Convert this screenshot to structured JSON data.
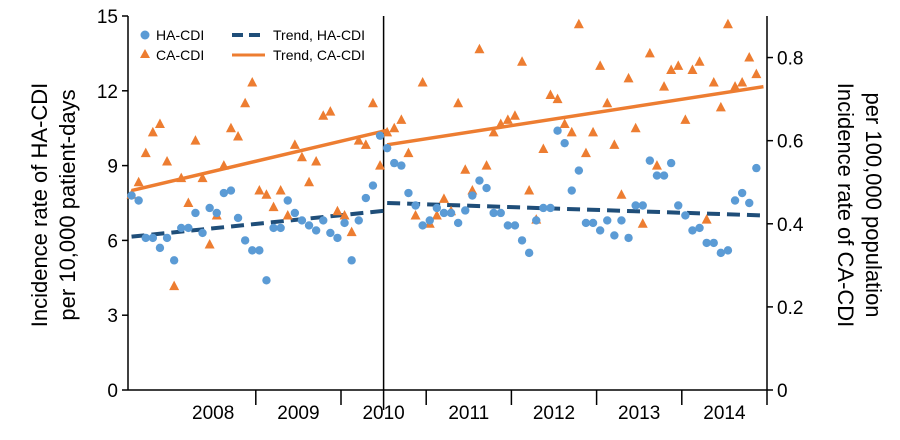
{
  "chart_data": {
    "type": "scatter",
    "x_categories": [
      "2008",
      "2009",
      "2010",
      "2011",
      "2012",
      "2013",
      "2014"
    ],
    "left_axis": {
      "label_line1": "Incidence rate of HA-CDI",
      "label_line2": "per 10,000 patient-days",
      "ylim": [
        0,
        15
      ],
      "ticks": [
        "0",
        "3",
        "6",
        "9",
        "12",
        "15"
      ]
    },
    "right_axis": {
      "label_line1": "Incidence rate of CA-CDI",
      "label_line2": "per 100,000 population",
      "ylim": [
        0,
        0.9
      ],
      "ticks": [
        "0",
        "0.2",
        "0.4",
        "0.6",
        "0.8"
      ]
    },
    "intervention_month": 36,
    "legend": {
      "ha": "HA-CDI",
      "ca": "CA-CDI",
      "trend_ha": "Trend, HA-CDI",
      "trend_ca": "Trend, CA-CDI"
    },
    "colors": {
      "ha": "#5b9bd5",
      "ca": "#ed7d31",
      "trend_ha": "#1f4e79",
      "trend_ca": "#ed7d31"
    },
    "ha_cdi": [
      7.8,
      7.6,
      6.1,
      6.1,
      5.7,
      6.1,
      5.2,
      6.5,
      6.5,
      7.1,
      6.3,
      7.3,
      7.1,
      7.9,
      8.0,
      6.9,
      6.0,
      5.6,
      5.6,
      4.4,
      6.5,
      6.5,
      7.6,
      7.1,
      6.8,
      6.6,
      6.4,
      6.8,
      6.3,
      6.1,
      6.7,
      5.2,
      6.8,
      7.7,
      8.2,
      10.2,
      9.7,
      9.1,
      9.0,
      7.9,
      7.4,
      6.6,
      6.8,
      7.3,
      7.1,
      7.1,
      6.7,
      7.2,
      7.8,
      8.4,
      8.1,
      7.1,
      7.1,
      6.6,
      6.6,
      6.0,
      5.5,
      6.8,
      7.3,
      7.3,
      10.4,
      9.9,
      8.0,
      8.8,
      6.7,
      6.7,
      6.4,
      6.8,
      6.2,
      6.8,
      6.1,
      7.4,
      7.4,
      9.2,
      8.6,
      8.6,
      9.1,
      7.4,
      7.0,
      6.4,
      6.5,
      5.9,
      5.9,
      5.5,
      5.6,
      7.6,
      7.9,
      7.5,
      8.9
    ],
    "ca_cdi": [
      0.47,
      0.5,
      0.57,
      0.62,
      0.64,
      0.55,
      0.25,
      0.51,
      0.45,
      0.6,
      0.51,
      0.35,
      0.42,
      0.54,
      0.63,
      0.61,
      0.69,
      0.74,
      0.48,
      0.47,
      0.44,
      0.48,
      0.42,
      0.59,
      0.56,
      0.5,
      0.55,
      0.66,
      0.67,
      0.43,
      0.42,
      0.38,
      0.6,
      0.59,
      0.69,
      0.54,
      0.62,
      0.63,
      0.65,
      0.57,
      0.42,
      0.74,
      0.4,
      0.42,
      0.46,
      0.43,
      0.69,
      0.53,
      0.48,
      0.82,
      0.54,
      0.62,
      0.64,
      0.65,
      0.66,
      0.79,
      0.48,
      0.41,
      0.58,
      0.71,
      0.7,
      0.64,
      0.62,
      0.88,
      0.57,
      0.62,
      0.78,
      0.69,
      0.59,
      0.47,
      0.75,
      0.63,
      0.4,
      0.81,
      0.54,
      0.73,
      0.77,
      0.78,
      0.65,
      0.77,
      0.79,
      0.41,
      0.74,
      0.68,
      0.88,
      0.73,
      0.74,
      0.8,
      0.76
    ],
    "trend_ha": [
      [
        0,
        6.15
      ],
      [
        36,
        7.2
      ],
      [
        36,
        7.5
      ],
      [
        89,
        7.0
      ]
    ],
    "trend_ca": [
      [
        0,
        0.48
      ],
      [
        36,
        0.625
      ],
      [
        36,
        0.59
      ],
      [
        89,
        0.73
      ]
    ]
  }
}
